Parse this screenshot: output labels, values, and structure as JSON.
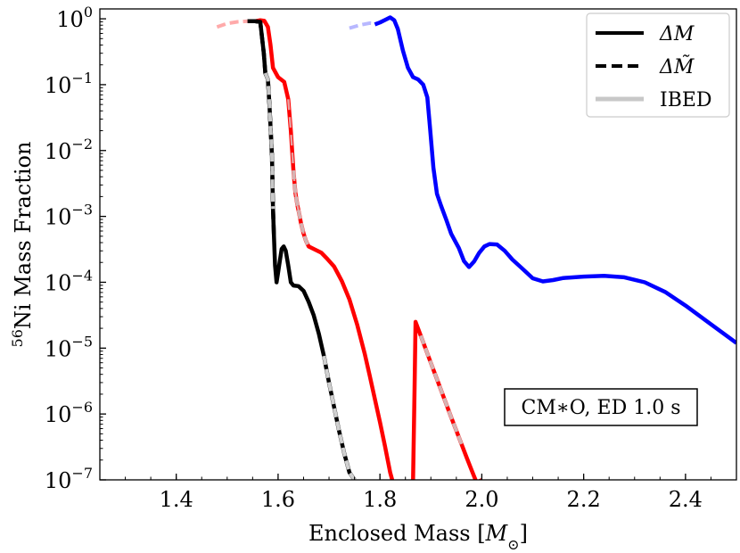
{
  "chart_data": {
    "type": "line",
    "xlabel": "Enclosed Mass [M⊙]",
    "ylabel": "56Ni Mass Fraction",
    "ylabel_superscript": "56",
    "ylabel_rest": "Ni Mass Fraction",
    "xlabel_main": "Enclosed Mass [",
    "xlabel_symbol": "M",
    "xlabel_sub": "⊙",
    "xlabel_end": "]",
    "xlim": [
      1.25,
      2.5
    ],
    "ylim_log10": [
      -7,
      0.15
    ],
    "yscale": "log",
    "grid": false,
    "x_ticks": [
      {
        "value": 1.4,
        "label": "1.4"
      },
      {
        "value": 1.6,
        "label": "1.6"
      },
      {
        "value": 1.8,
        "label": "1.8"
      },
      {
        "value": 2.0,
        "label": "2.0"
      },
      {
        "value": 2.2,
        "label": "2.2"
      },
      {
        "value": 2.4,
        "label": "2.4"
      }
    ],
    "y_ticks": [
      {
        "exp": 0,
        "base": "10",
        "power": "0"
      },
      {
        "exp": -1,
        "base": "10",
        "power": "−1"
      },
      {
        "exp": -2,
        "base": "10",
        "power": "−2"
      },
      {
        "exp": -3,
        "base": "10",
        "power": "−3"
      },
      {
        "exp": -4,
        "base": "10",
        "power": "−4"
      },
      {
        "exp": -5,
        "base": "10",
        "power": "−5"
      },
      {
        "exp": -6,
        "base": "10",
        "power": "−6"
      },
      {
        "exp": -7,
        "base": "10",
        "power": "−7"
      }
    ],
    "legend": {
      "position": "top-right",
      "entries": [
        {
          "label": "ΔM",
          "style": "solid",
          "color": "#000000"
        },
        {
          "label": "ΔM̃",
          "style": "dashed",
          "color": "#000000"
        },
        {
          "label": "IBED",
          "style": "solid",
          "color": "#c8c8c8"
        }
      ]
    },
    "annotation": {
      "text": "CM∗O, ED 1.0 s",
      "position": "lower-right"
    },
    "series": [
      {
        "name": "black ΔM",
        "color": "#000000",
        "style": "solid",
        "points": [
          [
            1.555,
            0.92
          ],
          [
            1.565,
            0.9
          ],
          [
            1.572,
            0.3
          ],
          [
            1.575,
            0.15
          ],
          [
            1.58,
            0.12
          ],
          [
            1.583,
            0.05
          ],
          [
            1.588,
            0.008
          ],
          [
            1.59,
            0.0013
          ],
          [
            1.592,
            0.00045
          ],
          [
            1.594,
            0.00018
          ],
          [
            1.597,
            0.0001
          ],
          [
            1.6,
            0.00014
          ],
          [
            1.603,
            0.0002
          ],
          [
            1.607,
            0.00032
          ],
          [
            1.611,
            0.00035
          ],
          [
            1.615,
            0.0003
          ],
          [
            1.62,
            0.00018
          ],
          [
            1.625,
            0.0001
          ],
          [
            1.63,
            8.94e-05
          ],
          [
            1.64,
            8.73e-05
          ],
          [
            1.65,
            7.4e-05
          ],
          [
            1.66,
            5.05e-05
          ],
          [
            1.67,
            3.14e-05
          ],
          [
            1.68,
            1.66e-05
          ],
          [
            1.69,
            7.6e-06
          ],
          [
            1.7,
            3e-06
          ],
          [
            1.71,
            1.26e-06
          ],
          [
            1.72,
            5.4e-07
          ],
          [
            1.73,
            2.5e-07
          ],
          [
            1.74,
            1.3e-07
          ],
          [
            1.75,
            1e-07
          ]
        ]
      },
      {
        "name": "red",
        "color": "#ff0000",
        "style": "solid",
        "points": [
          [
            1.555,
            0.92
          ],
          [
            1.565,
            0.95
          ],
          [
            1.573,
            0.93
          ],
          [
            1.58,
            0.75
          ],
          [
            1.585,
            0.4
          ],
          [
            1.59,
            0.18
          ],
          [
            1.6,
            0.13
          ],
          [
            1.612,
            0.11
          ],
          [
            1.62,
            0.06
          ],
          [
            1.625,
            0.02
          ],
          [
            1.63,
            0.005
          ],
          [
            1.634,
            0.0023
          ],
          [
            1.638,
            0.00147
          ],
          [
            1.642,
            0.00105
          ],
          [
            1.645,
            0.000788
          ],
          [
            1.65,
            0.00055
          ],
          [
            1.655,
            0.00042
          ],
          [
            1.66,
            0.00035
          ],
          [
            1.67,
            0.000321
          ],
          [
            1.685,
            0.00028
          ],
          [
            1.695,
            0.000233
          ],
          [
            1.71,
            0.000173
          ],
          [
            1.725,
            0.000105
          ],
          [
            1.74,
            5.5e-05
          ],
          [
            1.755,
            2.3e-05
          ],
          [
            1.77,
            8.3e-06
          ],
          [
            1.78,
            3.8e-06
          ],
          [
            1.79,
            1.7e-06
          ],
          [
            1.8,
            7.5e-07
          ],
          [
            1.81,
            3.2e-07
          ],
          [
            1.82,
            1.3e-07
          ],
          [
            1.824,
            1e-07
          ]
        ]
      },
      {
        "name": "red tail",
        "color": "#ff0000",
        "style": "solid",
        "points": [
          [
            1.865,
            1e-07
          ],
          [
            1.868,
            2.5e-06
          ],
          [
            1.87,
            2.5e-05
          ],
          [
            1.88,
            1.55e-05
          ],
          [
            1.89,
            9.6e-06
          ],
          [
            1.9,
            5.95e-06
          ],
          [
            1.91,
            3.7e-06
          ],
          [
            1.92,
            2.3e-06
          ],
          [
            1.93,
            1.43e-06
          ],
          [
            1.94,
            8.9e-07
          ],
          [
            1.95,
            5.6e-07
          ],
          [
            1.96,
            3.5e-07
          ],
          [
            1.97,
            2.2e-07
          ],
          [
            1.98,
            1.4e-07
          ],
          [
            1.99,
            9e-08
          ],
          [
            2.0,
            1e-07
          ]
        ]
      },
      {
        "name": "blue",
        "color": "#0000ff",
        "style": "solid",
        "points": [
          [
            1.79,
            0.82
          ],
          [
            1.8,
            0.88
          ],
          [
            1.81,
            0.96
          ],
          [
            1.82,
            1.05
          ],
          [
            1.828,
            0.95
          ],
          [
            1.835,
            0.7
          ],
          [
            1.845,
            0.33
          ],
          [
            1.855,
            0.18
          ],
          [
            1.865,
            0.13
          ],
          [
            1.875,
            0.12
          ],
          [
            1.885,
            0.1
          ],
          [
            1.893,
            0.064
          ],
          [
            1.898,
            0.024
          ],
          [
            1.905,
            0.0055
          ],
          [
            1.912,
            0.0022
          ],
          [
            1.92,
            0.00145
          ],
          [
            1.93,
            0.0009
          ],
          [
            1.94,
            0.000543
          ],
          [
            1.955,
            0.00033
          ],
          [
            1.965,
            0.00021
          ],
          [
            1.975,
            0.00017
          ],
          [
            1.985,
            0.000207
          ],
          [
            1.995,
            0.00028
          ],
          [
            2.005,
            0.00035
          ],
          [
            2.015,
            0.00038
          ],
          [
            2.03,
            0.000375
          ],
          [
            2.045,
            0.0003
          ],
          [
            2.06,
            0.000221
          ],
          [
            2.08,
            0.00016
          ],
          [
            2.1,
            0.000115
          ],
          [
            2.12,
            0.000103
          ],
          [
            2.14,
            0.000108
          ],
          [
            2.16,
            0.000116
          ],
          [
            2.2,
            0.000122
          ],
          [
            2.24,
            0.000125
          ],
          [
            2.28,
            0.000119
          ],
          [
            2.32,
            0.0001
          ],
          [
            2.36,
            7.14e-05
          ],
          [
            2.4,
            4.43e-05
          ],
          [
            2.45,
            2.3e-05
          ],
          [
            2.5,
            1.2e-05
          ]
        ]
      },
      {
        "name": "black ΔM̃ dashed (over black)",
        "color": "#000000",
        "style": "dashed",
        "points": [
          [
            1.555,
            0.92
          ],
          [
            1.565,
            0.9
          ],
          [
            1.572,
            0.3
          ],
          [
            1.575,
            0.15
          ],
          [
            1.58,
            0.12
          ],
          [
            1.583,
            0.05
          ],
          [
            1.588,
            0.008
          ],
          [
            1.59,
            0.0013
          ],
          [
            1.592,
            0.00045
          ]
        ]
      },
      {
        "name": "red dashed (over red)",
        "color": "#000000",
        "style": "dashed-red",
        "points": [
          [
            1.62,
            0.06
          ],
          [
            1.625,
            0.02
          ],
          [
            1.63,
            0.005
          ],
          [
            1.634,
            0.0023
          ],
          [
            1.638,
            0.00147
          ],
          [
            1.642,
            0.00105
          ],
          [
            1.645,
            0.000788
          ],
          [
            1.65,
            0.00055
          ],
          [
            1.655,
            0.00042
          ]
        ]
      },
      {
        "name": "IBED grey overlay black",
        "color": "#c8c8c8",
        "style": "dashed-light",
        "points": [
          [
            1.575,
            0.15
          ],
          [
            1.58,
            0.12
          ],
          [
            1.583,
            0.05
          ],
          [
            1.588,
            0.008
          ],
          [
            1.59,
            0.0013
          ]
        ]
      },
      {
        "name": "IBED grey overlay black tail",
        "color": "#d0d0d0",
        "style": "dashed-light",
        "points": [
          [
            1.69,
            7.6e-06
          ],
          [
            1.7,
            3e-06
          ],
          [
            1.71,
            1.26e-06
          ],
          [
            1.72,
            5.4e-07
          ],
          [
            1.73,
            2.5e-07
          ],
          [
            1.74,
            1.3e-07
          ],
          [
            1.75,
            1e-07
          ]
        ]
      },
      {
        "name": "IBED grey overlay red",
        "color": "#d6b3b3",
        "style": "dashed-light",
        "points": [
          [
            1.63,
            0.005
          ],
          [
            1.634,
            0.0023
          ],
          [
            1.638,
            0.00147
          ],
          [
            1.642,
            0.00105
          ],
          [
            1.645,
            0.000788
          ],
          [
            1.65,
            0.00055
          ],
          [
            1.655,
            0.00042
          ],
          [
            1.66,
            0.00035
          ]
        ]
      },
      {
        "name": "IBED grey overlay red tail",
        "color": "#d6b3b3",
        "style": "dashed-light",
        "points": [
          [
            1.88,
            1.55e-05
          ],
          [
            1.89,
            9.6e-06
          ],
          [
            1.9,
            5.95e-06
          ],
          [
            1.91,
            3.7e-06
          ],
          [
            1.92,
            2.3e-06
          ],
          [
            1.93,
            1.43e-06
          ],
          [
            1.94,
            8.9e-07
          ],
          [
            1.95,
            5.6e-07
          ],
          [
            1.96,
            3.5e-07
          ]
        ]
      },
      {
        "name": "pink IBED start",
        "color": "#ffaaaa",
        "style": "dashed-light",
        "points": [
          [
            1.48,
            0.75
          ],
          [
            1.5,
            0.85
          ],
          [
            1.52,
            0.9
          ],
          [
            1.54,
            0.92
          ],
          [
            1.555,
            0.92
          ]
        ]
      },
      {
        "name": "light blue IBED start",
        "color": "#b8b8ff",
        "style": "dashed-light",
        "points": [
          [
            1.74,
            0.72
          ],
          [
            1.76,
            0.8
          ],
          [
            1.78,
            0.86
          ],
          [
            1.79,
            0.85
          ]
        ]
      },
      {
        "name": "black IBED start",
        "color": "#000000",
        "style": "dashed",
        "points": [
          [
            1.54,
            0.92
          ],
          [
            1.555,
            0.92
          ],
          [
            1.565,
            0.9
          ]
        ]
      }
    ]
  }
}
